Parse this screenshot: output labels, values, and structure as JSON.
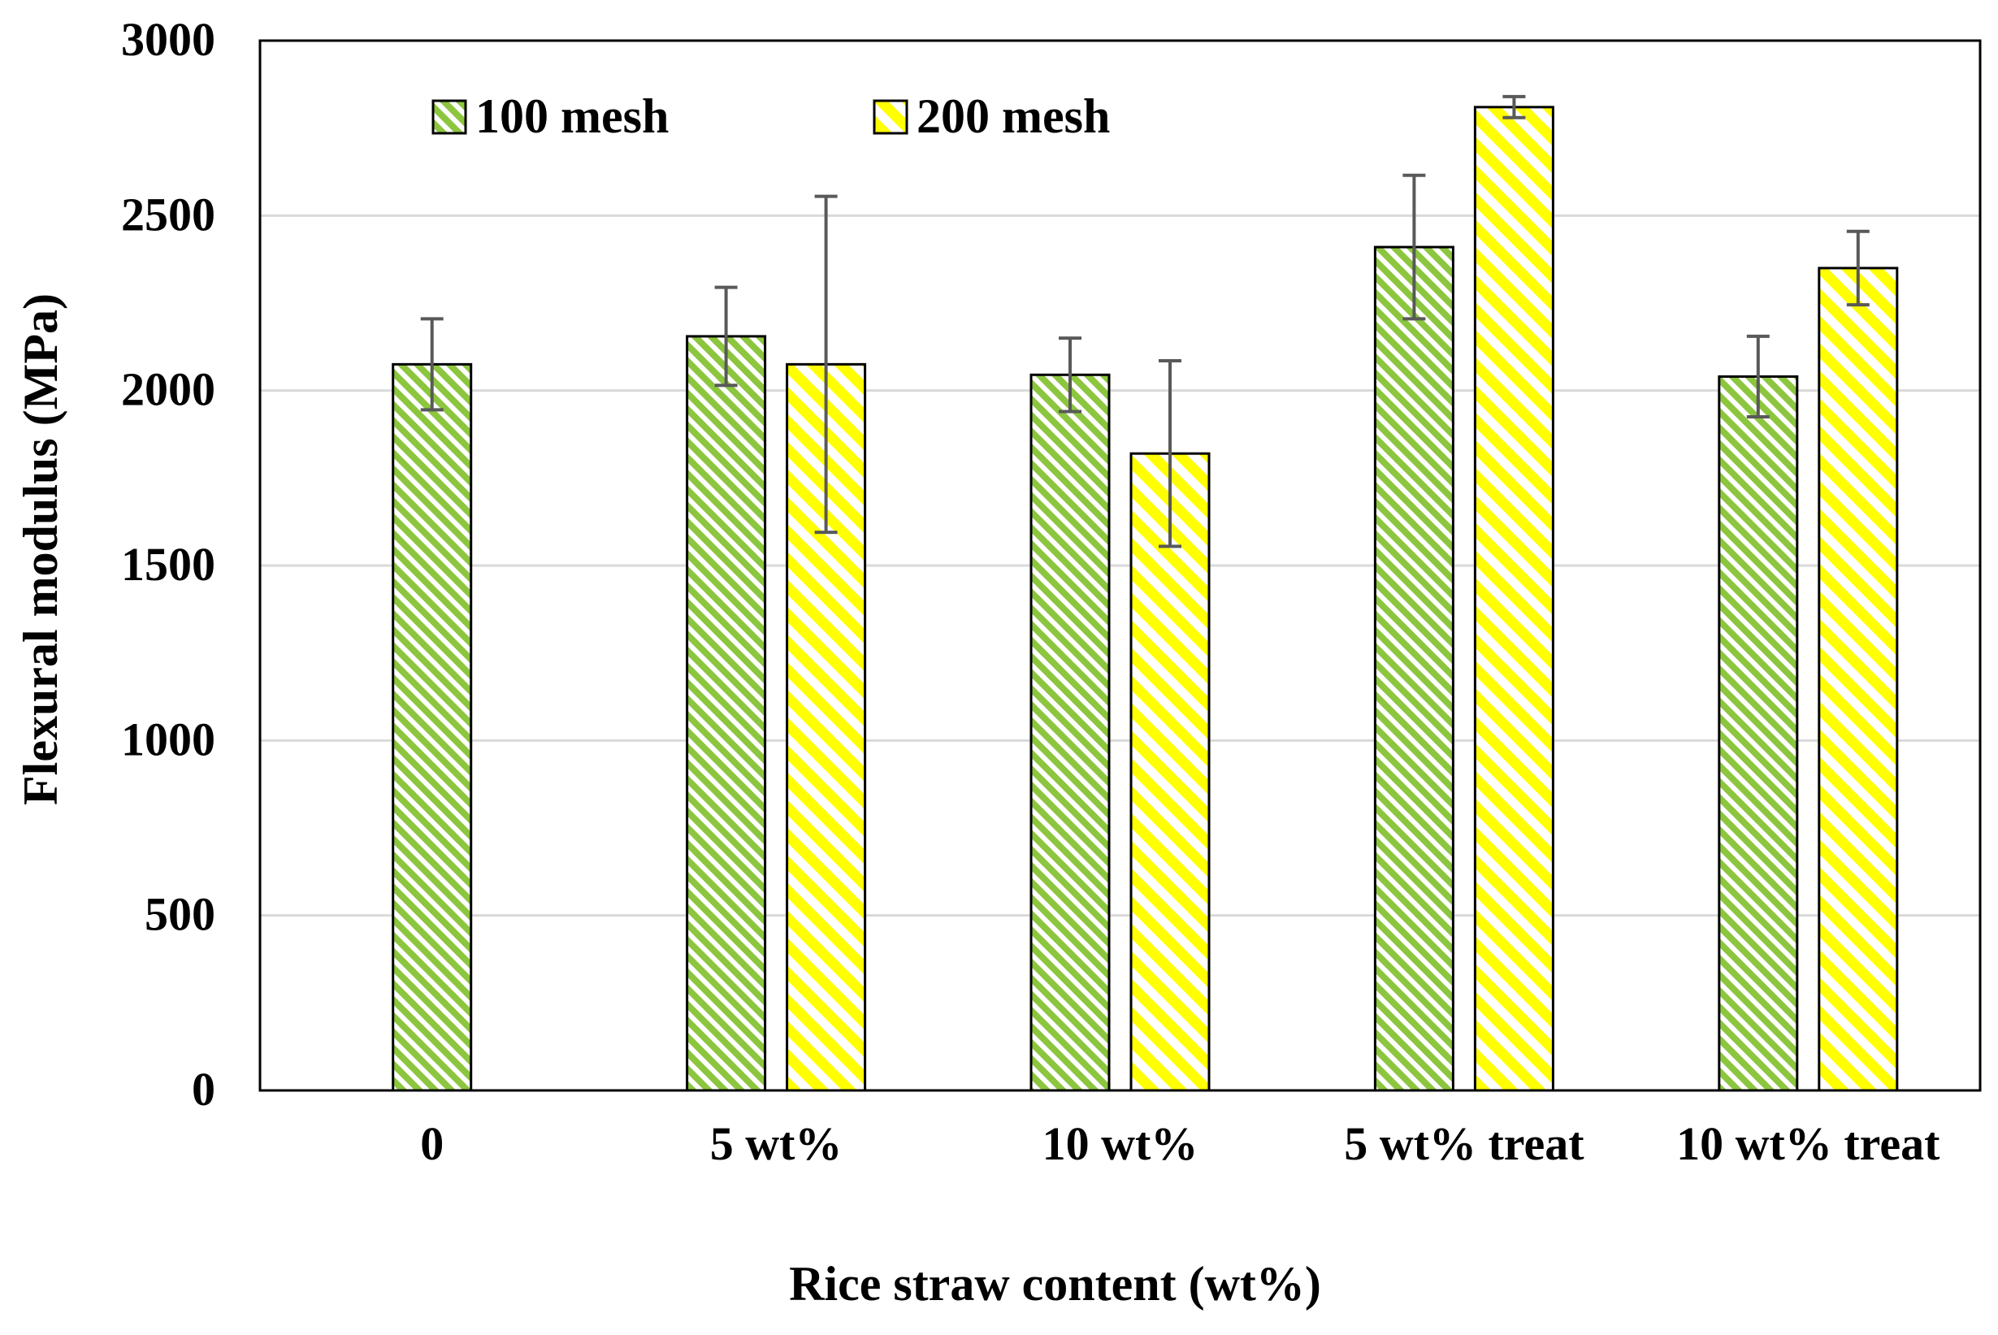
{
  "chart_data": {
    "type": "bar",
    "title": "",
    "xlabel": "Rice straw content (wt%)",
    "ylabel": "Flexural modulus (MPa)",
    "ylim": [
      0,
      3000
    ],
    "yticks": [
      0,
      500,
      1000,
      1500,
      2000,
      2500,
      3000
    ],
    "grid": true,
    "legend_position": "top-left",
    "categories": [
      "0",
      "5 wt%",
      "10 wt%",
      "5 wt% treat",
      "10 wt% treat"
    ],
    "series": [
      {
        "name": "100 mesh",
        "color": "#8cc63f",
        "pattern": "diagonal-hatch",
        "values": [
          2075,
          2155,
          2045,
          2410,
          2040
        ],
        "errors": [
          130,
          140,
          105,
          205,
          115
        ]
      },
      {
        "name": "200 mesh",
        "color": "#ffff00",
        "pattern": "diagonal-hatch",
        "values": [
          null,
          2075,
          1820,
          2810,
          2350
        ],
        "errors": [
          null,
          480,
          265,
          30,
          105
        ]
      }
    ]
  }
}
